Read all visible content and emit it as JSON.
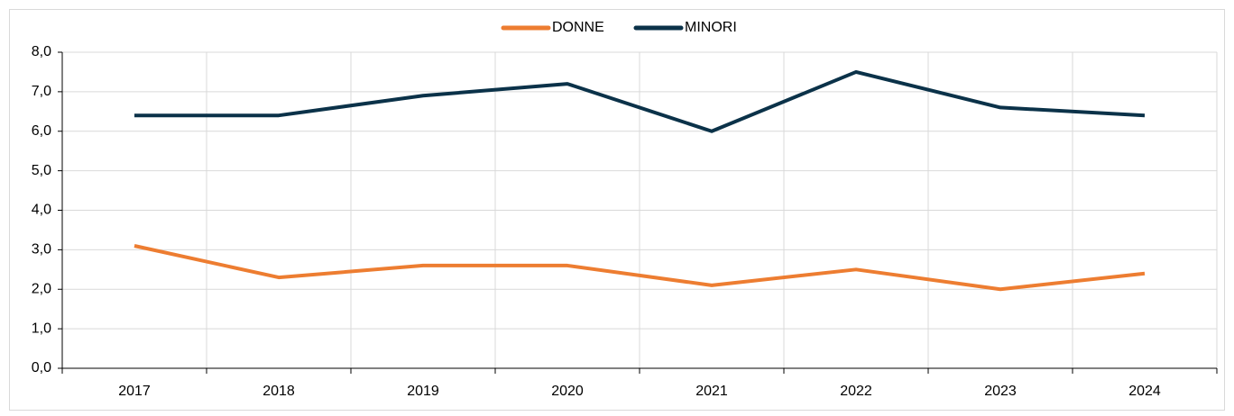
{
  "chart_data": {
    "type": "line",
    "categories": [
      "2017",
      "2018",
      "2019",
      "2020",
      "2021",
      "2022",
      "2023",
      "2024"
    ],
    "series": [
      {
        "name": "DONNE",
        "color": "#ed7d31",
        "values": [
          3.1,
          2.3,
          2.6,
          2.6,
          2.1,
          2.5,
          2.0,
          2.4
        ]
      },
      {
        "name": "MINORI",
        "color": "#0b3249",
        "values": [
          6.4,
          6.4,
          6.9,
          7.2,
          6.0,
          7.5,
          6.6,
          6.4
        ]
      }
    ],
    "ylim": [
      0,
      8
    ],
    "yticks": [
      {
        "value": 0,
        "label": "0,0"
      },
      {
        "value": 1,
        "label": "1,0"
      },
      {
        "value": 2,
        "label": "2,0"
      },
      {
        "value": 3,
        "label": "3,0"
      },
      {
        "value": 4,
        "label": "4,0"
      },
      {
        "value": 5,
        "label": "5,0"
      },
      {
        "value": 6,
        "label": "6,0"
      },
      {
        "value": 7,
        "label": "7,0"
      },
      {
        "value": 8,
        "label": "8,0"
      }
    ],
    "grid": true,
    "legend": "top"
  }
}
